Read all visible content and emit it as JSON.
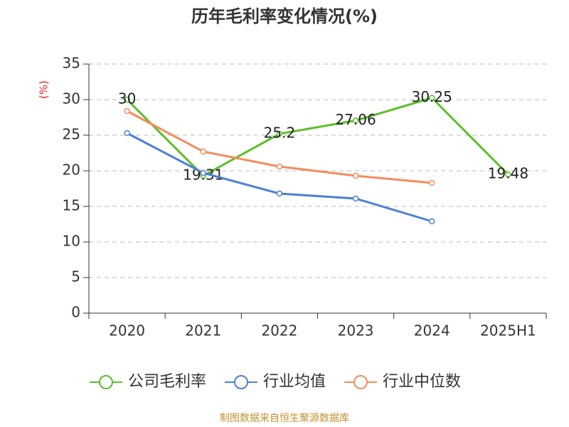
{
  "chart_data": {
    "type": "line",
    "title": "历年毛利率变化情况(%)",
    "y_label": "(%)",
    "categories": [
      "2020",
      "2021",
      "2022",
      "2023",
      "2024",
      "2025H1"
    ],
    "series": [
      {
        "name": "公司毛利率",
        "color": "#5cbf2a",
        "values": [
          30,
          19.31,
          25.2,
          27.06,
          30.25,
          19.48
        ],
        "data_labels": true
      },
      {
        "name": "行业均值",
        "color": "#4e7fd6",
        "values": [
          25.3,
          19.7,
          16.8,
          16.1,
          12.9,
          null
        ],
        "data_labels": false
      },
      {
        "name": "行业中位数",
        "color": "#f58c5a",
        "values": [
          28.4,
          22.7,
          20.6,
          19.3,
          18.3,
          null
        ],
        "data_labels": false
      }
    ],
    "ylim": [
      0,
      35
    ],
    "yticks": [
      0,
      5,
      10,
      15,
      20,
      25,
      30,
      35
    ],
    "grid": true,
    "legend": "bottom",
    "source": "制图数据来自恒生聚源数据库"
  }
}
